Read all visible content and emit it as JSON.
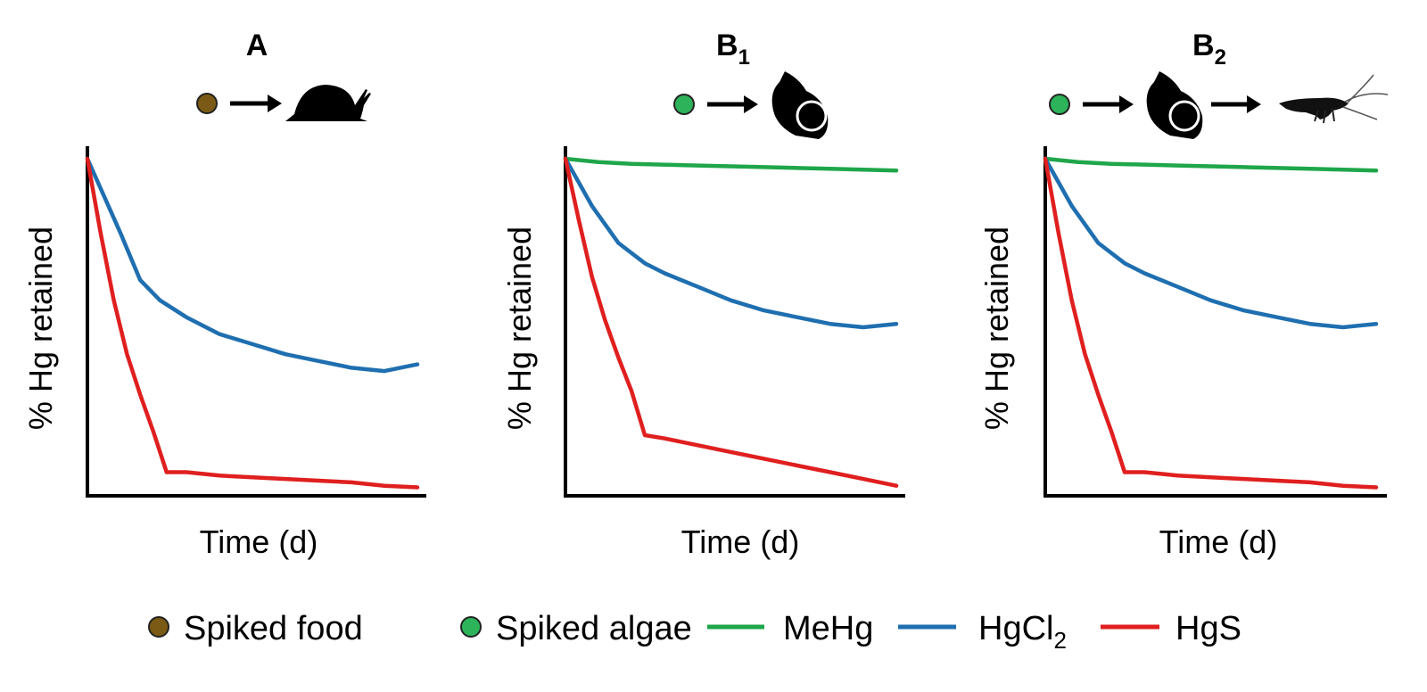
{
  "colors": {
    "MeHg": "#1fa64a",
    "HgCl2": "#1f6fb0",
    "HgS": "#e01f1f",
    "spiked_food": "#7a5a14",
    "spiked_algae": "#2db35a",
    "axis": "#000000"
  },
  "legend": {
    "spiked_food": "Spiked food",
    "spiked_algae": "Spiked algae",
    "mehg": "MeHg",
    "hgcl2_main": "HgCl",
    "hgcl2_sub": "2",
    "hgs": "HgS"
  },
  "chart_data": [
    {
      "type": "line",
      "panel": "A",
      "title": "A",
      "title_sub": "",
      "food_chain": [
        "spiked-food",
        "snail"
      ],
      "xlabel": "Time (d)",
      "ylabel": "% Hg retained",
      "xlim": [
        0,
        10
      ],
      "ylim": [
        0,
        100
      ],
      "grid": false,
      "series": [
        {
          "key": "HgCl2",
          "x": [
            0,
            1,
            1.6,
            2.2,
            3,
            4,
            5,
            6,
            7,
            8,
            9,
            10
          ],
          "y": [
            100,
            78,
            64,
            58,
            53,
            48,
            45,
            42,
            40,
            38,
            37,
            39
          ]
        },
        {
          "key": "HgS",
          "x": [
            0,
            0.4,
            0.8,
            1.2,
            1.6,
            2,
            2.4,
            3,
            4,
            5,
            6,
            7,
            8,
            9,
            10
          ],
          "y": [
            100,
            78,
            58,
            42,
            30,
            19,
            7,
            7,
            6,
            5.5,
            5,
            4.5,
            4,
            3,
            2.5
          ]
        }
      ]
    },
    {
      "type": "line",
      "panel": "B1",
      "title": "B",
      "title_sub": "1",
      "food_chain": [
        "spiked-algae",
        "whelk"
      ],
      "xlabel": "Time (d)",
      "ylabel": "% Hg retained",
      "xlim": [
        0,
        10
      ],
      "ylim": [
        0,
        100
      ],
      "grid": false,
      "series": [
        {
          "key": "MeHg",
          "x": [
            0,
            1,
            2,
            4,
            6,
            8,
            10
          ],
          "y": [
            100,
            99,
            98.5,
            98,
            97.5,
            97,
            96.5
          ]
        },
        {
          "key": "HgCl2",
          "x": [
            0,
            0.8,
            1.6,
            2.4,
            3,
            4,
            5,
            6,
            7,
            8,
            9,
            10
          ],
          "y": [
            100,
            86,
            75,
            69,
            66,
            62,
            58,
            55,
            53,
            51,
            50,
            51
          ]
        },
        {
          "key": "HgS",
          "x": [
            0,
            0.4,
            0.8,
            1.2,
            1.6,
            2,
            2.4,
            3,
            4,
            5,
            6,
            7,
            8,
            9,
            10
          ],
          "y": [
            100,
            82,
            65,
            52,
            41,
            31,
            18,
            17,
            15,
            13,
            11,
            9,
            7,
            5,
            3
          ]
        }
      ]
    },
    {
      "type": "line",
      "panel": "B2",
      "title": "B",
      "title_sub": "2",
      "food_chain": [
        "spiked-algae",
        "whelk",
        "shrimp"
      ],
      "xlabel": "Time (d)",
      "ylabel": "% Hg retained",
      "xlim": [
        0,
        10
      ],
      "ylim": [
        0,
        100
      ],
      "grid": false,
      "series": [
        {
          "key": "MeHg",
          "x": [
            0,
            1,
            2,
            4,
            6,
            8,
            10
          ],
          "y": [
            100,
            99,
            98.5,
            98,
            97.5,
            97,
            96.5
          ]
        },
        {
          "key": "HgCl2",
          "x": [
            0,
            0.8,
            1.6,
            2.4,
            3,
            4,
            5,
            6,
            7,
            8,
            9,
            10
          ],
          "y": [
            100,
            86,
            75,
            69,
            66,
            62,
            58,
            55,
            53,
            51,
            50,
            51
          ]
        },
        {
          "key": "HgS",
          "x": [
            0,
            0.4,
            0.8,
            1.2,
            1.6,
            2,
            2.4,
            3,
            4,
            5,
            6,
            7,
            8,
            9,
            10
          ],
          "y": [
            100,
            78,
            58,
            42,
            30,
            19,
            7,
            7,
            6,
            5.5,
            5,
            4.5,
            4,
            3,
            2.5
          ]
        }
      ]
    }
  ]
}
